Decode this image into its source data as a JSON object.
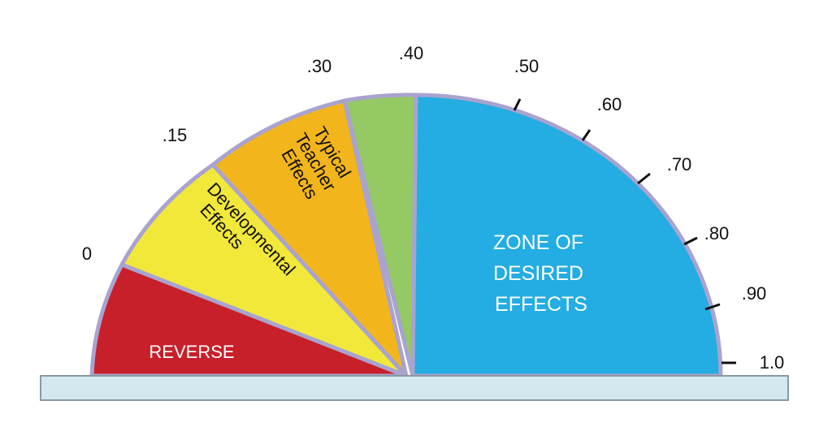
{
  "scale_labels": [
    "0",
    ".15",
    ".30",
    ".40",
    ".50",
    ".60",
    ".70",
    ".80",
    ".90",
    "1.0"
  ],
  "zones": {
    "reverse": [
      "REVERSE"
    ],
    "developmental": [
      "Developmental",
      "Effects"
    ],
    "teacher": [
      "Typical",
      "Teacher",
      "Effects"
    ],
    "desired": [
      "ZONE OF",
      "DESIRED",
      "EFFECTS"
    ]
  }
}
